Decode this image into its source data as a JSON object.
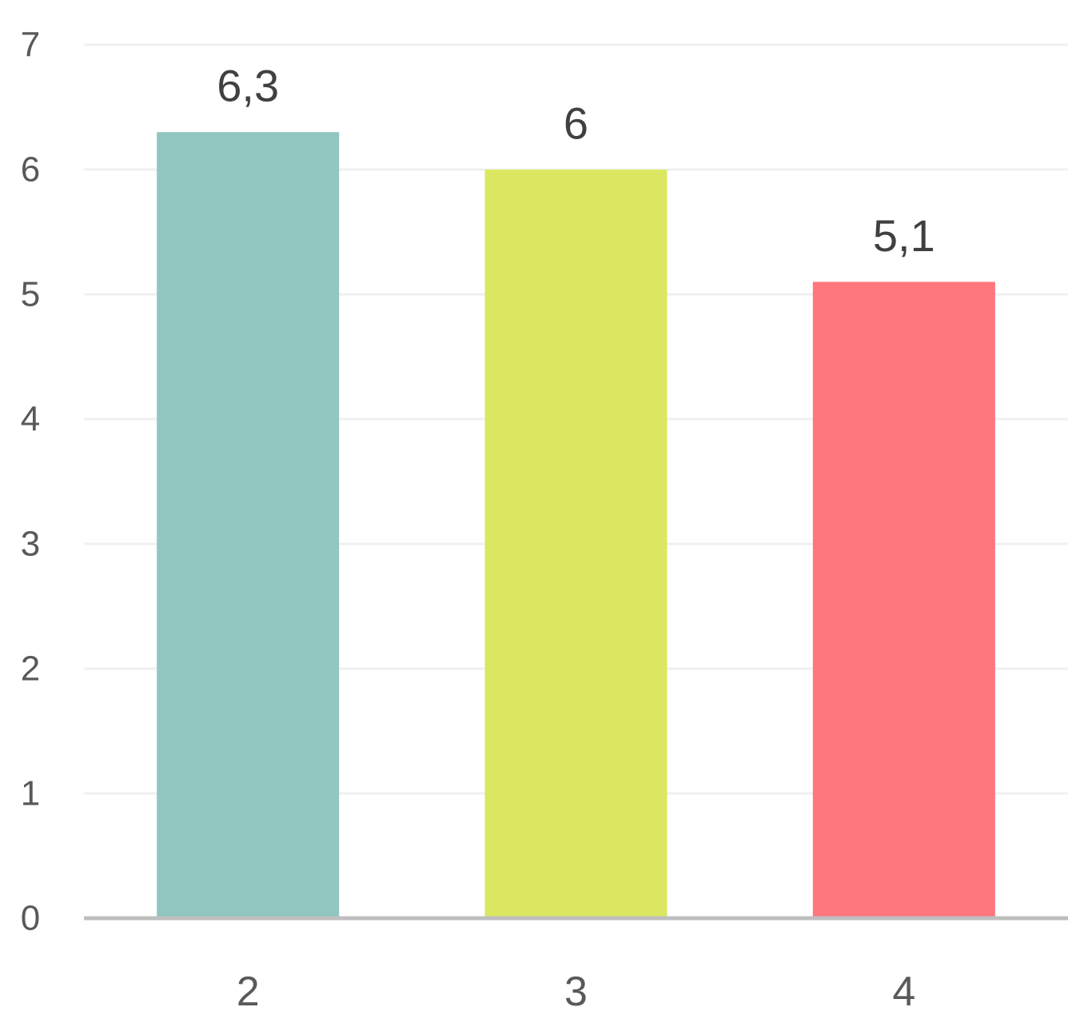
{
  "chart_data": {
    "type": "bar",
    "categories": [
      "2",
      "3",
      "4"
    ],
    "values": [
      6.3,
      6,
      5.1
    ],
    "data_labels": [
      "6,3",
      "6",
      "5,1"
    ],
    "bar_colors": [
      "#91C6C1",
      "#DCE761",
      "#FF767E"
    ],
    "ylim": [
      0,
      7
    ],
    "y_ticks": [
      0,
      1,
      2,
      3,
      4,
      5,
      6,
      7
    ],
    "y_tick_labels": [
      "0",
      "1",
      "2",
      "3",
      "4",
      "5",
      "6",
      "7"
    ],
    "grid": true,
    "gridline_color": "#F0F0F0",
    "axis_color": "#BFBFBF",
    "title": "",
    "xlabel": "",
    "ylabel": "",
    "legend": "none"
  }
}
